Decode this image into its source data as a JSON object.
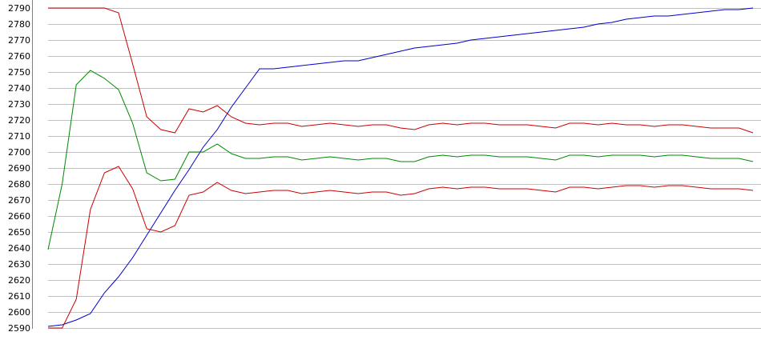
{
  "chart_data": {
    "type": "line",
    "title": "",
    "xlabel": "",
    "ylabel": "",
    "ylim": [
      2590,
      2790
    ],
    "yticks": [
      2590,
      2600,
      2610,
      2620,
      2630,
      2640,
      2650,
      2660,
      2670,
      2680,
      2690,
      2700,
      2710,
      2720,
      2730,
      2740,
      2750,
      2760,
      2770,
      2780,
      2790
    ],
    "xlim": [
      0,
      50
    ],
    "grid": true,
    "legend": "none",
    "series": [
      {
        "color": "#0000cc",
        "values": [
          2591,
          2592,
          2595,
          2599,
          2612,
          2622,
          2634,
          2648,
          2662,
          2676,
          2689,
          2703,
          2714,
          2728,
          2740,
          2752,
          2752,
          2753,
          2754,
          2755,
          2756,
          2757,
          2757,
          2759,
          2761,
          2763,
          2765,
          2766,
          2767,
          2768,
          2770,
          2771,
          2772,
          2773,
          2774,
          2775,
          2776,
          2777,
          2778,
          2780,
          2781,
          2783,
          2784,
          2785,
          2785,
          2786,
          2787,
          2788,
          2789,
          2789,
          2790
        ]
      },
      {
        "color": "#cc0000",
        "values": [
          2790,
          2790,
          2790,
          2790,
          2790,
          2787,
          2755,
          2722,
          2714,
          2712,
          2727,
          2725,
          2729,
          2722,
          2718,
          2717,
          2718,
          2718,
          2716,
          2717,
          2718,
          2717,
          2716,
          2717,
          2717,
          2715,
          2714,
          2717,
          2718,
          2717,
          2718,
          2718,
          2717,
          2717,
          2717,
          2716,
          2715,
          2718,
          2718,
          2717,
          2718,
          2717,
          2717,
          2716,
          2717,
          2717,
          2716,
          2715,
          2715,
          2715,
          2712
        ]
      },
      {
        "color": "#008800",
        "values": [
          2639,
          2680,
          2742,
          2751,
          2746,
          2739,
          2718,
          2687,
          2682,
          2683,
          2700,
          2700,
          2705,
          2699,
          2696,
          2696,
          2697,
          2697,
          2695,
          2696,
          2697,
          2696,
          2695,
          2696,
          2696,
          2694,
          2694,
          2697,
          2698,
          2697,
          2698,
          2698,
          2697,
          2697,
          2697,
          2696,
          2695,
          2698,
          2698,
          2697,
          2698,
          2698,
          2698,
          2697,
          2698,
          2698,
          2697,
          2696,
          2696,
          2696,
          2694
        ]
      },
      {
        "color": "#cc0000",
        "values": [
          2590,
          2590,
          2608,
          2664,
          2687,
          2691,
          2677,
          2652,
          2650,
          2654,
          2673,
          2675,
          2681,
          2676,
          2674,
          2675,
          2676,
          2676,
          2674,
          2675,
          2676,
          2675,
          2674,
          2675,
          2675,
          2673,
          2674,
          2677,
          2678,
          2677,
          2678,
          2678,
          2677,
          2677,
          2677,
          2676,
          2675,
          2678,
          2678,
          2677,
          2678,
          2679,
          2679,
          2678,
          2679,
          2679,
          2678,
          2677,
          2677,
          2677,
          2676
        ]
      }
    ]
  }
}
